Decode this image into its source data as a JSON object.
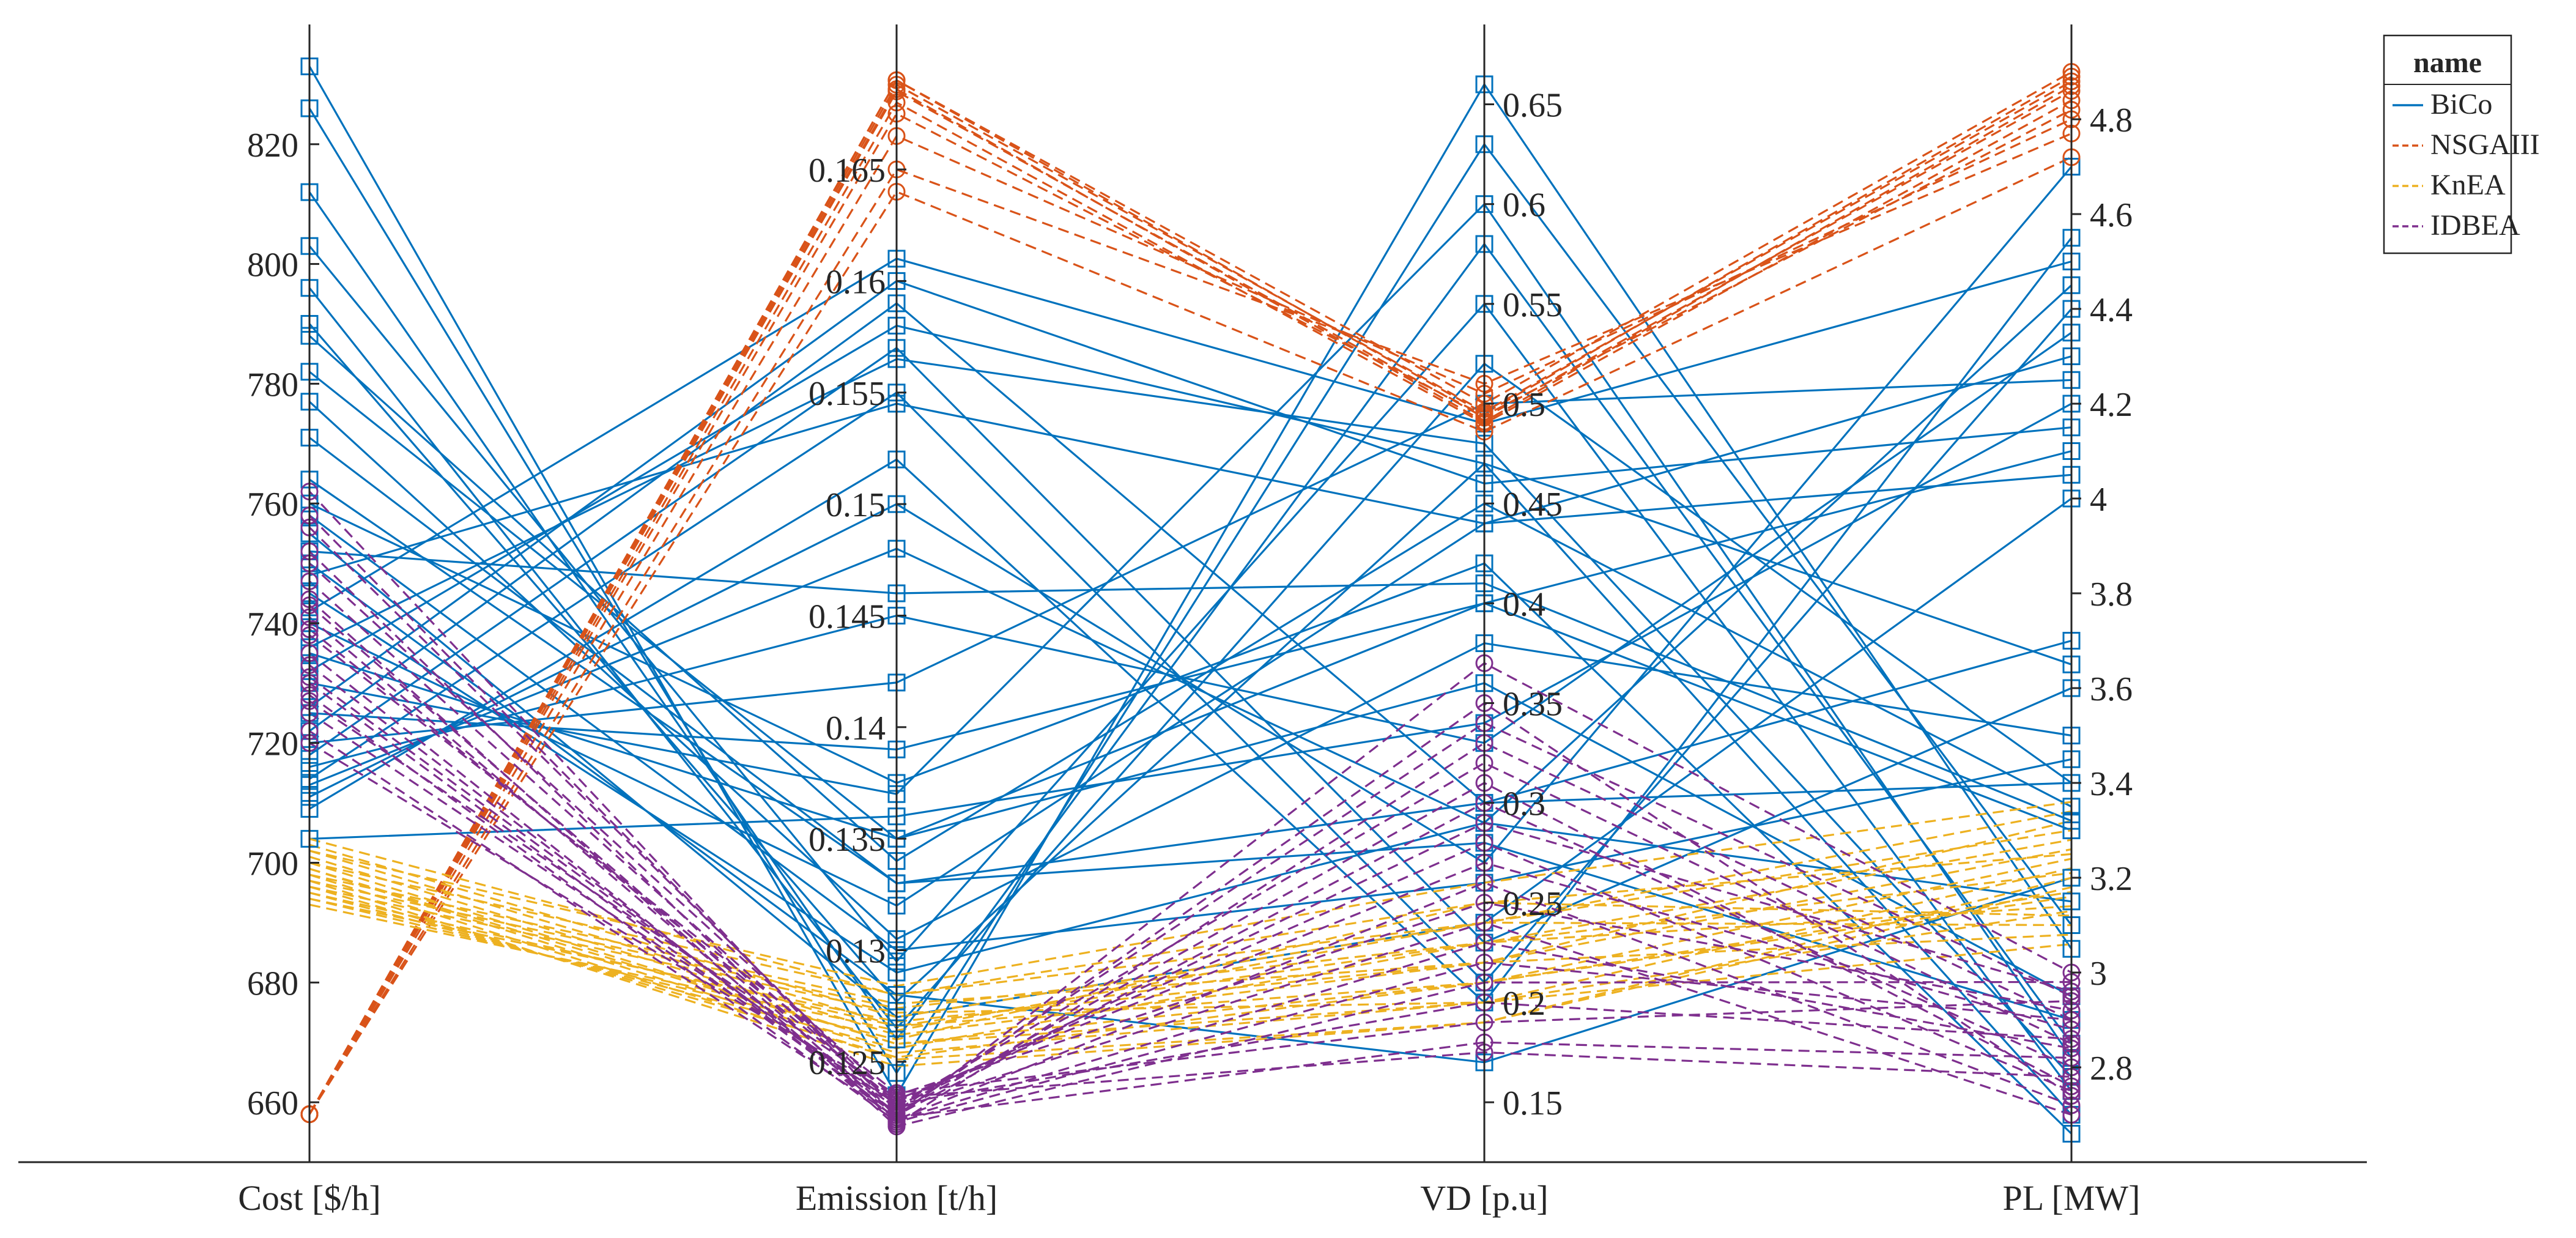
{
  "chart_data": {
    "type": "parallel-coordinates",
    "axes": [
      {
        "name": "Cost [$/h]",
        "range": [
          650,
          840
        ],
        "ticks": [
          660,
          680,
          700,
          720,
          740,
          760,
          780,
          800,
          820
        ],
        "tick_labels": [
          "660",
          "680",
          "700",
          "720",
          "740",
          "760",
          "780",
          "800",
          "820"
        ],
        "tick_side": "left"
      },
      {
        "name": "Emission [t/h]",
        "range": [
          0.1205,
          0.1715
        ],
        "ticks": [
          0.125,
          0.13,
          0.135,
          0.14,
          0.145,
          0.15,
          0.155,
          0.16,
          0.165
        ],
        "tick_labels": [
          "0.125",
          "0.13",
          "0.135",
          "0.14",
          "0.145",
          "0.15",
          "0.155",
          "0.16",
          "0.165"
        ],
        "tick_side": "left"
      },
      {
        "name": "VD [p.u]",
        "range": [
          0.12,
          0.69
        ],
        "ticks": [
          0.15,
          0.2,
          0.25,
          0.3,
          0.35,
          0.4,
          0.45,
          0.5,
          0.55,
          0.6,
          0.65
        ],
        "tick_labels": [
          "0.15",
          "0.2",
          "0.25",
          "0.3",
          "0.35",
          "0.4",
          "0.45",
          "0.5",
          "0.55",
          "0.6",
          "0.65"
        ],
        "tick_side": "right"
      },
      {
        "name": "PL [MW]",
        "range": [
          2.6,
          5.0
        ],
        "ticks": [
          2.8,
          3.0,
          3.2,
          3.4,
          3.6,
          3.8,
          4.0,
          4.2,
          4.4,
          4.6,
          4.8
        ],
        "tick_labels": [
          "2.8",
          "3",
          "3.2",
          "3.4",
          "3.6",
          "3.8",
          "4",
          "4.2",
          "4.4",
          "4.6",
          "4.8"
        ],
        "tick_side": "right"
      }
    ],
    "legend": {
      "title": "name",
      "position": "top-right"
    },
    "series": [
      {
        "name": "BiCo",
        "color": "#0072BD",
        "dash": "solid",
        "marker": "square",
        "lines": [
          [
            833,
            0.1235,
            0.66,
            3.05
          ],
          [
            826,
            0.1245,
            0.63,
            3.1
          ],
          [
            812,
            0.126,
            0.58,
            2.85
          ],
          [
            803,
            0.1295,
            0.55,
            2.75
          ],
          [
            796,
            0.1265,
            0.52,
            3.4
          ],
          [
            790,
            0.1277,
            0.47,
            3.65
          ],
          [
            788,
            0.134,
            0.45,
            3.35
          ],
          [
            782,
            0.135,
            0.4,
            3.3
          ],
          [
            777,
            0.1305,
            0.38,
            3.5
          ],
          [
            771,
            0.133,
            0.3,
            3.7
          ],
          [
            764,
            0.133,
            0.28,
            2.9
          ],
          [
            758,
            0.13,
            0.26,
            3.45
          ],
          [
            755,
            0.127,
            0.24,
            4.0
          ],
          [
            750,
            0.128,
            0.17,
            3.2
          ],
          [
            745,
            0.129,
            0.29,
            3.15
          ],
          [
            740,
            0.132,
            0.44,
            4.05
          ],
          [
            735,
            0.135,
            0.36,
            2.95
          ],
          [
            730,
            0.137,
            0.6,
            2.82
          ],
          [
            725,
            0.139,
            0.4,
            4.1
          ],
          [
            720,
            0.142,
            0.5,
            4.25
          ],
          [
            716,
            0.145,
            0.33,
            4.35
          ],
          [
            713,
            0.148,
            0.29,
            4.45
          ],
          [
            711,
            0.15,
            0.27,
            4.7
          ],
          [
            709,
            0.152,
            0.2,
            4.55
          ],
          [
            714,
            0.155,
            0.21,
            4.4
          ],
          [
            718,
            0.157,
            0.23,
            3.6
          ],
          [
            722,
            0.159,
            0.3,
            3.4
          ],
          [
            726,
            0.16,
            0.46,
            4.15
          ],
          [
            732,
            0.158,
            0.47,
            2.7
          ],
          [
            736,
            0.1565,
            0.48,
            2.78
          ],
          [
            742,
            0.161,
            0.49,
            4.5
          ],
          [
            748,
            0.1545,
            0.44,
            4.3
          ],
          [
            752,
            0.146,
            0.41,
            3.32
          ],
          [
            760,
            0.1375,
            0.42,
            2.66
          ],
          [
            704,
            0.136,
            0.34,
            4.2
          ]
        ]
      },
      {
        "name": "NSGAIII",
        "color": "#D95319",
        "dash": "dashed",
        "marker": "circle",
        "lines": [
          [
            658,
            0.169,
            0.5,
            4.9
          ],
          [
            658,
            0.1688,
            0.496,
            4.88
          ],
          [
            658,
            0.1685,
            0.493,
            4.86
          ],
          [
            658,
            0.168,
            0.49,
            4.84
          ],
          [
            658,
            0.1675,
            0.494,
            4.82
          ],
          [
            658,
            0.1665,
            0.505,
            4.8
          ],
          [
            658,
            0.165,
            0.51,
            4.77
          ],
          [
            658,
            0.164,
            0.486,
            4.72
          ],
          [
            658,
            0.169,
            0.495,
            4.89
          ],
          [
            658,
            0.1686,
            0.491,
            4.87
          ]
        ]
      },
      {
        "name": "KnEA",
        "color": "#EDB120",
        "dash": "dashed",
        "marker": "none",
        "lines": [
          [
            703,
            0.127,
            0.24,
            3.3
          ],
          [
            702,
            0.1266,
            0.23,
            3.28
          ],
          [
            701,
            0.1262,
            0.22,
            3.26
          ],
          [
            700,
            0.1258,
            0.21,
            3.24
          ],
          [
            699,
            0.1254,
            0.2,
            3.22
          ],
          [
            698,
            0.1251,
            0.19,
            3.2
          ],
          [
            697,
            0.1248,
            0.19,
            3.18
          ],
          [
            696,
            0.1252,
            0.21,
            3.16
          ],
          [
            695,
            0.1256,
            0.23,
            3.14
          ],
          [
            694,
            0.126,
            0.25,
            3.12
          ],
          [
            693,
            0.1264,
            0.24,
            3.1
          ],
          [
            694,
            0.1268,
            0.22,
            3.08
          ],
          [
            696,
            0.1272,
            0.2,
            3.06
          ],
          [
            698,
            0.1276,
            0.22,
            3.32
          ],
          [
            700,
            0.128,
            0.24,
            3.34
          ],
          [
            702,
            0.1284,
            0.26,
            3.36
          ],
          [
            704,
            0.128,
            0.25,
            3.25
          ],
          [
            697,
            0.1274,
            0.23,
            3.21
          ],
          [
            695,
            0.1266,
            0.21,
            3.17
          ],
          [
            699,
            0.1258,
            0.2,
            3.13
          ]
        ]
      },
      {
        "name": "IDBEA",
        "color": "#7E2F8E",
        "dash": "dashed",
        "marker": "circle",
        "lines": [
          [
            762,
            0.1225,
            0.37,
            3.0
          ],
          [
            758,
            0.1228,
            0.34,
            2.95
          ],
          [
            752,
            0.1222,
            0.33,
            2.9
          ],
          [
            747,
            0.123,
            0.32,
            2.85
          ],
          [
            743,
            0.1226,
            0.3,
            2.8
          ],
          [
            739,
            0.1232,
            0.28,
            2.75
          ],
          [
            735,
            0.1224,
            0.26,
            2.72
          ],
          [
            731,
            0.1229,
            0.24,
            2.7
          ],
          [
            728,
            0.1223,
            0.22,
            2.9
          ],
          [
            725,
            0.1231,
            0.2,
            2.86
          ],
          [
            722,
            0.1225,
            0.18,
            2.82
          ],
          [
            720,
            0.1234,
            0.175,
            2.78
          ],
          [
            738,
            0.1236,
            0.19,
            2.94
          ],
          [
            744,
            0.1221,
            0.21,
            2.98
          ],
          [
            750,
            0.1233,
            0.27,
            2.88
          ],
          [
            733,
            0.1227,
            0.31,
            2.76
          ],
          [
            727,
            0.1235,
            0.25,
            2.92
          ],
          [
            741,
            0.1224,
            0.23,
            2.84
          ],
          [
            756,
            0.123,
            0.29,
            2.96
          ],
          [
            730,
            0.1226,
            0.35,
            2.74
          ]
        ]
      }
    ]
  }
}
